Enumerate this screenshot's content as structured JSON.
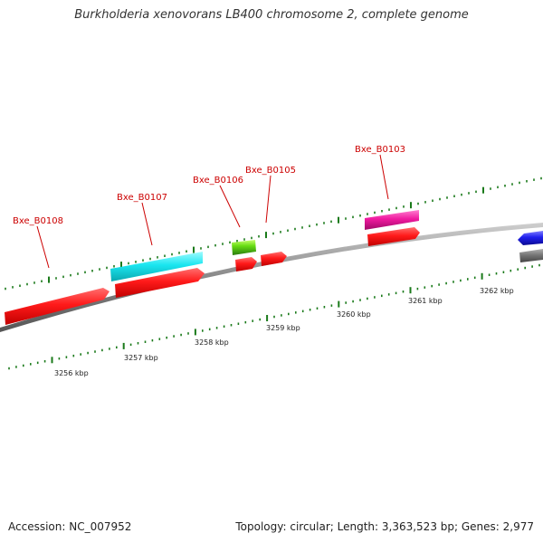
{
  "title": "Burkholderia xenovorans LB400 chromosome 2, complete genome",
  "accession_label": "Accession: NC_007952",
  "summary_label": "Topology: circular; Length: 3,363,523 bp; Genes: 2,977",
  "colors": {
    "backbone": "#888888",
    "tick": "#1a7a1a",
    "label": "#cc0000",
    "gene_red": "#ff1a1a",
    "gene_cyan": "#1ae6f0",
    "gene_pink": "#f01aa0",
    "gene_green": "#66dd11",
    "gene_blue": "#2020ee",
    "gene_gray": "#777777"
  },
  "axis": {
    "unit": "kbp",
    "labeled_ticks": [
      "3256 kbp",
      "3257 kbp",
      "3258 kbp",
      "3259 kbp",
      "3260 kbp",
      "3261 kbp",
      "3262 kbp"
    ]
  },
  "genes": [
    {
      "label": "Bxe_B0108",
      "color": "gene_red",
      "strand": "+"
    },
    {
      "label": "Bxe_B0107",
      "color": "gene_cyan",
      "strand": "+"
    },
    {
      "label": "",
      "color": "gene_red",
      "strand": "+"
    },
    {
      "label": "Bxe_B0106",
      "color": "gene_green",
      "strand": "+"
    },
    {
      "label": "",
      "color": "gene_red",
      "strand": "+"
    },
    {
      "label": "Bxe_B0105",
      "color": "gene_red",
      "strand": "+"
    },
    {
      "label": "Bxe_B0103",
      "color": "gene_pink",
      "strand": "+"
    },
    {
      "label": "",
      "color": "gene_red",
      "strand": "+"
    },
    {
      "label": "",
      "color": "gene_blue",
      "strand": "-"
    },
    {
      "label": "",
      "color": "gene_gray",
      "strand": "+"
    }
  ]
}
